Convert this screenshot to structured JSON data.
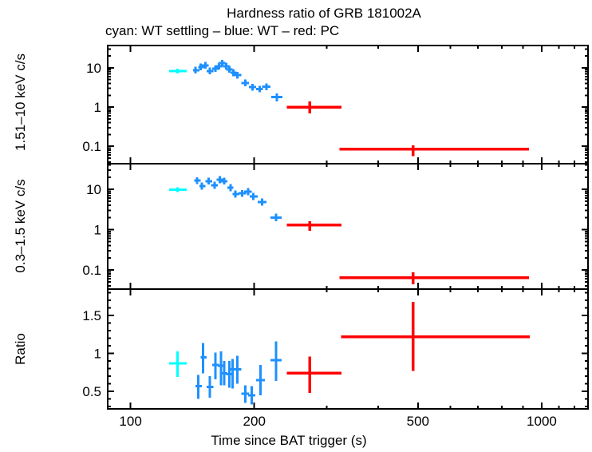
{
  "title": "Hardness ratio of GRB 181002A",
  "subtitle": "cyan: WT settling – blue: WT – red: PC",
  "colors": {
    "wt_settling": "#00ffff",
    "wt": "#1e90ff",
    "pc": "#ff0000",
    "axis": "#000000",
    "background": "#ffffff"
  },
  "chart_data": {
    "type": "scatter",
    "title": "Hardness ratio of GRB 181002A",
    "legend_text": "cyan: WT settling – blue: WT – red: PC",
    "x_axis": {
      "label": "Time since BAT trigger (s)",
      "scale": "log",
      "range_s": [
        88,
        1296
      ],
      "major_ticks": [
        100,
        200,
        500,
        1000
      ],
      "major_tick_labels": [
        "100",
        "200",
        "500",
        "1000"
      ],
      "minor_ticks": [
        300,
        400,
        600,
        700,
        800,
        900,
        1100,
        1200
      ]
    },
    "panels": [
      {
        "id": "hard",
        "ylabel": "1.51–10 keV c/s",
        "yscale": "log",
        "yrange": [
          0.036,
          37
        ],
        "major_ticks": [
          10,
          1,
          0.1
        ],
        "tick_labels": [
          "10",
          "1",
          "0.1"
        ],
        "series": [
          {
            "id": "wt_settling",
            "name": "WT settling",
            "color": "#00ffff",
            "points": [
              {
                "t": 130,
                "t_lo": 124,
                "t_hi": 137,
                "v": 8.3,
                "v_lo": 7.2,
                "v_hi": 9.6
              }
            ]
          },
          {
            "id": "wt",
            "name": "WT",
            "color": "#1e90ff",
            "points": [
              {
                "t": 144,
                "t_lo": 142,
                "t_hi": 147,
                "v": 8.7,
                "v_lo": 7.1,
                "v_hi": 10.6
              },
              {
                "t": 148,
                "t_lo": 146,
                "t_hi": 151,
                "v": 10.5,
                "v_lo": 8.6,
                "v_hi": 12.8
              },
              {
                "t": 152,
                "t_lo": 149,
                "t_hi": 155,
                "v": 11.5,
                "v_lo": 9.4,
                "v_hi": 14.0
              },
              {
                "t": 156,
                "t_lo": 153,
                "t_hi": 159,
                "v": 8.3,
                "v_lo": 6.8,
                "v_hi": 10.1
              },
              {
                "t": 161,
                "t_lo": 158,
                "t_hi": 164,
                "v": 9.5,
                "v_lo": 7.8,
                "v_hi": 11.6
              },
              {
                "t": 164,
                "t_lo": 161,
                "t_hi": 167,
                "v": 11.0,
                "v_lo": 9.0,
                "v_hi": 13.4
              },
              {
                "t": 167,
                "t_lo": 164,
                "t_hi": 170,
                "v": 13.2,
                "v_lo": 10.8,
                "v_hi": 16.1
              },
              {
                "t": 171,
                "t_lo": 168,
                "t_hi": 174,
                "v": 11.0,
                "v_lo": 9.0,
                "v_hi": 13.4
              },
              {
                "t": 174,
                "t_lo": 171,
                "t_hi": 177,
                "v": 9.1,
                "v_lo": 7.5,
                "v_hi": 11.1
              },
              {
                "t": 178,
                "t_lo": 175,
                "t_hi": 181,
                "v": 7.5,
                "v_lo": 6.1,
                "v_hi": 9.2
              },
              {
                "t": 182,
                "t_lo": 179,
                "t_hi": 186,
                "v": 6.5,
                "v_lo": 5.3,
                "v_hi": 7.9
              },
              {
                "t": 190,
                "t_lo": 186,
                "t_hi": 194,
                "v": 4.1,
                "v_lo": 3.4,
                "v_hi": 5.0
              },
              {
                "t": 198,
                "t_lo": 194,
                "t_hi": 202,
                "v": 3.2,
                "v_lo": 2.6,
                "v_hi": 3.9
              },
              {
                "t": 206,
                "t_lo": 202,
                "t_hi": 210,
                "v": 2.9,
                "v_lo": 2.4,
                "v_hi": 3.5
              },
              {
                "t": 214,
                "t_lo": 209,
                "t_hi": 219,
                "v": 3.3,
                "v_lo": 2.7,
                "v_hi": 4.0
              },
              {
                "t": 227,
                "t_lo": 220,
                "t_hi": 234,
                "v": 1.8,
                "v_lo": 1.4,
                "v_hi": 2.2
              }
            ]
          },
          {
            "id": "pc",
            "name": "PC",
            "color": "#ff0000",
            "points": [
              {
                "t": 273,
                "t_lo": 240,
                "t_hi": 326,
                "v": 1.0,
                "v_lo": 0.69,
                "v_hi": 1.39
              },
              {
                "t": 487,
                "t_lo": 322,
                "t_hi": 931,
                "v": 0.085,
                "v_lo": 0.056,
                "v_hi": 0.105
              }
            ]
          }
        ]
      },
      {
        "id": "soft",
        "ylabel": "0.3–1.5 keV c/s",
        "yscale": "log",
        "yrange": [
          0.0335,
          43
        ],
        "major_ticks": [
          10,
          1,
          0.1
        ],
        "tick_labels": [
          "10",
          "1",
          "0.1"
        ],
        "series": [
          {
            "id": "wt_settling",
            "name": "WT settling",
            "color": "#00ffff",
            "points": [
              {
                "t": 130,
                "t_lo": 124,
                "t_hi": 137,
                "v": 9.8,
                "v_lo": 8.5,
                "v_hi": 11.3
              }
            ]
          },
          {
            "id": "wt",
            "name": "WT",
            "color": "#1e90ff",
            "points": [
              {
                "t": 145,
                "t_lo": 143,
                "t_hi": 148,
                "v": 16.5,
                "v_lo": 13.5,
                "v_hi": 20.0
              },
              {
                "t": 149,
                "t_lo": 147,
                "t_hi": 152,
                "v": 12.0,
                "v_lo": 9.8,
                "v_hi": 14.6
              },
              {
                "t": 155,
                "t_lo": 152,
                "t_hi": 158,
                "v": 15.8,
                "v_lo": 13.0,
                "v_hi": 19.3
              },
              {
                "t": 160,
                "t_lo": 157,
                "t_hi": 163,
                "v": 12.6,
                "v_lo": 10.3,
                "v_hi": 15.4
              },
              {
                "t": 165,
                "t_lo": 162,
                "t_hi": 168,
                "v": 17.3,
                "v_lo": 14.2,
                "v_hi": 21.0
              },
              {
                "t": 169,
                "t_lo": 166,
                "t_hi": 172,
                "v": 15.8,
                "v_lo": 13.0,
                "v_hi": 19.3
              },
              {
                "t": 175,
                "t_lo": 172,
                "t_hi": 178,
                "v": 11.0,
                "v_lo": 9.0,
                "v_hi": 13.4
              },
              {
                "t": 180,
                "t_lo": 177,
                "t_hi": 184,
                "v": 7.6,
                "v_lo": 6.2,
                "v_hi": 9.3
              },
              {
                "t": 187,
                "t_lo": 183,
                "t_hi": 191,
                "v": 7.9,
                "v_lo": 6.5,
                "v_hi": 9.6
              },
              {
                "t": 193,
                "t_lo": 189,
                "t_hi": 197,
                "v": 8.7,
                "v_lo": 7.1,
                "v_hi": 10.6
              },
              {
                "t": 199,
                "t_lo": 195,
                "t_hi": 204,
                "v": 6.6,
                "v_lo": 5.4,
                "v_hi": 8.1
              },
              {
                "t": 209,
                "t_lo": 204,
                "t_hi": 214,
                "v": 4.8,
                "v_lo": 3.9,
                "v_hi": 5.9
              },
              {
                "t": 226,
                "t_lo": 219,
                "t_hi": 233,
                "v": 2.0,
                "v_lo": 1.6,
                "v_hi": 2.5
              }
            ]
          },
          {
            "id": "pc",
            "name": "PC",
            "color": "#ff0000",
            "points": [
              {
                "t": 273,
                "t_lo": 240,
                "t_hi": 326,
                "v": 1.3,
                "v_lo": 0.93,
                "v_hi": 1.63
              },
              {
                "t": 487,
                "t_lo": 322,
                "t_hi": 931,
                "v": 0.065,
                "v_lo": 0.044,
                "v_hi": 0.087
              }
            ]
          }
        ]
      },
      {
        "id": "ratio",
        "ylabel": "Ratio",
        "yscale": "linear",
        "yrange": [
          0.27,
          1.85
        ],
        "minor_step": 0.1,
        "major_ticks": [
          1.5,
          1,
          0.5
        ],
        "tick_labels": [
          "1.5",
          "1",
          "0.5"
        ],
        "series": [
          {
            "id": "wt_settling",
            "name": "WT settling",
            "color": "#00ffff",
            "points": [
              {
                "t": 130,
                "t_lo": 124,
                "t_hi": 137,
                "v": 0.87,
                "v_lo": 0.69,
                "v_hi": 1.03
              }
            ]
          },
          {
            "id": "wt",
            "name": "WT",
            "color": "#1e90ff",
            "points": [
              {
                "t": 146,
                "t_lo": 144,
                "t_hi": 149,
                "v": 0.57,
                "v_lo": 0.4,
                "v_hi": 0.72
              },
              {
                "t": 150,
                "t_lo": 148,
                "t_hi": 153,
                "v": 0.95,
                "v_lo": 0.74,
                "v_hi": 1.14
              },
              {
                "t": 156,
                "t_lo": 153,
                "t_hi": 159,
                "v": 0.56,
                "v_lo": 0.42,
                "v_hi": 0.7
              },
              {
                "t": 161,
                "t_lo": 158,
                "t_hi": 164,
                "v": 0.85,
                "v_lo": 0.66,
                "v_hi": 1.01
              },
              {
                "t": 166,
                "t_lo": 163,
                "t_hi": 169,
                "v": 0.84,
                "v_lo": 0.58,
                "v_hi": 1.03
              },
              {
                "t": 169,
                "t_lo": 166,
                "t_hi": 172,
                "v": 0.74,
                "v_lo": 0.58,
                "v_hi": 0.9
              },
              {
                "t": 174,
                "t_lo": 171,
                "t_hi": 177,
                "v": 0.73,
                "v_lo": 0.55,
                "v_hi": 0.9
              },
              {
                "t": 177,
                "t_lo": 174,
                "t_hi": 181,
                "v": 0.79,
                "v_lo": 0.54,
                "v_hi": 0.93
              },
              {
                "t": 182,
                "t_lo": 179,
                "t_hi": 186,
                "v": 0.79,
                "v_lo": 0.6,
                "v_hi": 0.97
              },
              {
                "t": 190,
                "t_lo": 186,
                "t_hi": 194,
                "v": 0.47,
                "v_lo": 0.35,
                "v_hi": 0.58
              },
              {
                "t": 197,
                "t_lo": 193,
                "t_hi": 201,
                "v": 0.45,
                "v_lo": 0.33,
                "v_hi": 0.57
              },
              {
                "t": 207,
                "t_lo": 202,
                "t_hi": 212,
                "v": 0.65,
                "v_lo": 0.45,
                "v_hi": 0.85
              },
              {
                "t": 226,
                "t_lo": 219,
                "t_hi": 233,
                "v": 0.91,
                "v_lo": 0.64,
                "v_hi": 1.16
              }
            ]
          },
          {
            "id": "pc",
            "name": "PC",
            "color": "#ff0000",
            "points": [
              {
                "t": 273,
                "t_lo": 240,
                "t_hi": 326,
                "v": 0.74,
                "v_lo": 0.48,
                "v_hi": 0.96
              },
              {
                "t": 487,
                "t_lo": 325,
                "t_hi": 935,
                "v": 1.22,
                "v_lo": 0.77,
                "v_hi": 1.68
              }
            ]
          }
        ]
      }
    ]
  }
}
